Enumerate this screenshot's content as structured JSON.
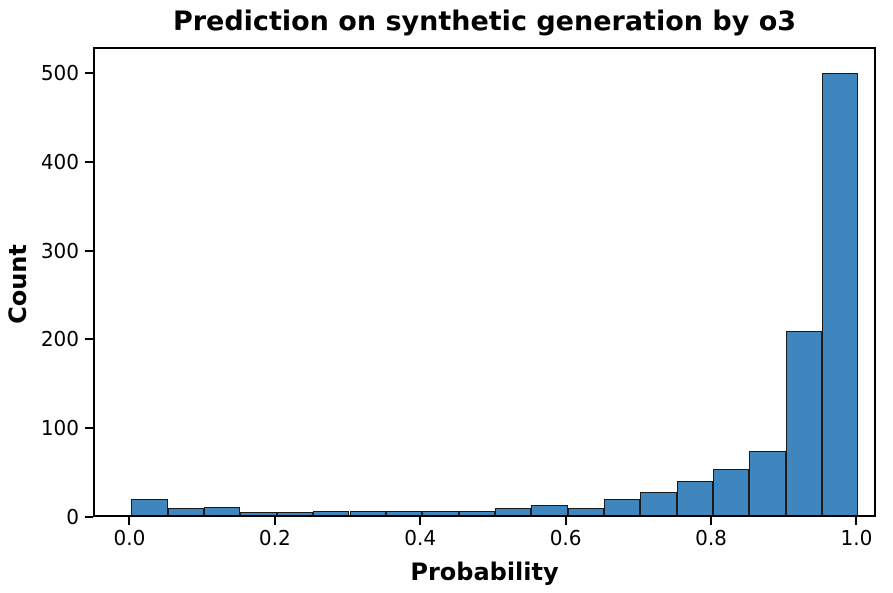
{
  "chart_data": {
    "type": "bar",
    "subtype": "histogram",
    "title": "Prediction on synthetic generation by o3",
    "xlabel": "Probability",
    "ylabel": "Count",
    "bin_edges": [
      0.0,
      0.05,
      0.1,
      0.15,
      0.2,
      0.25,
      0.3,
      0.35,
      0.4,
      0.45,
      0.5,
      0.55,
      0.6,
      0.65,
      0.7,
      0.75,
      0.8,
      0.85,
      0.9,
      0.95,
      1.0
    ],
    "counts": [
      18,
      8,
      9,
      3,
      3,
      4,
      4,
      4,
      5,
      4,
      8,
      11,
      8,
      18,
      26,
      38,
      52,
      72,
      207,
      498
    ],
    "xticks": [
      0.0,
      0.2,
      0.4,
      0.6,
      0.8,
      1.0
    ],
    "xtick_labels": [
      "0.0",
      "0.2",
      "0.4",
      "0.6",
      "0.8",
      "1.0"
    ],
    "yticks": [
      0,
      100,
      200,
      300,
      400,
      500
    ],
    "ytick_labels": [
      "0",
      "100",
      "200",
      "300",
      "400",
      "500"
    ],
    "xlim": [
      -0.05,
      1.027
    ],
    "ylim": [
      0,
      529
    ],
    "grid": false,
    "legend": "none",
    "bar_fill_color": "#3E86BD",
    "bar_edge_color": "#1a1a1a",
    "spine_color": "#000000",
    "background_color": "#ffffff",
    "text_color": "#000000"
  }
}
